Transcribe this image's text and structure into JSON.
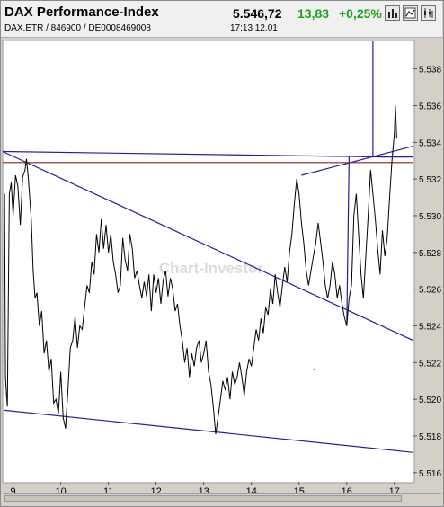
{
  "header": {
    "title": "DAX Performance-Index",
    "price": "5.546,72",
    "change": "13,83",
    "change_pct": "+0,25%",
    "subtitle": "DAX.ETR   /   846900   /   DE0008469008",
    "time": "17:13    12.01",
    "change_color": "#22a022",
    "toolbar_icons": [
      "bar-chart-icon",
      "line-chart-icon",
      "candle-chart-icon",
      "print-icon"
    ]
  },
  "watermark": "Chart-Investor",
  "chart_data": {
    "type": "line",
    "title": "",
    "xlabel": "",
    "ylabel": "",
    "xlim": [
      8.8,
      17.4
    ],
    "ylim": [
      5.5155,
      5.5395
    ],
    "x_ticks": [
      9,
      10,
      11,
      12,
      13,
      14,
      15,
      16,
      17
    ],
    "y_ticks": [
      5.516,
      5.518,
      5.52,
      5.522,
      5.524,
      5.526,
      5.528,
      5.53,
      5.532,
      5.534,
      5.536,
      5.538
    ],
    "grid": false,
    "legend": "none",
    "series": [
      {
        "color": "#000000",
        "points": [
          [
            8.82,
            5.5312
          ],
          [
            8.84,
            5.5212
          ],
          [
            8.86,
            5.5203
          ],
          [
            8.88,
            5.5196
          ],
          [
            8.92,
            5.5312
          ],
          [
            8.96,
            5.5318
          ],
          [
            9.0,
            5.53
          ],
          [
            9.05,
            5.5322
          ],
          [
            9.1,
            5.5316
          ],
          [
            9.15,
            5.5295
          ],
          [
            9.2,
            5.5321
          ],
          [
            9.25,
            5.5325
          ],
          [
            9.28,
            5.5331
          ],
          [
            9.32,
            5.532
          ],
          [
            9.38,
            5.5298
          ],
          [
            9.42,
            5.527
          ],
          [
            9.46,
            5.5255
          ],
          [
            9.5,
            5.5258
          ],
          [
            9.55,
            5.524
          ],
          [
            9.6,
            5.5248
          ],
          [
            9.65,
            5.5225
          ],
          [
            9.7,
            5.5232
          ],
          [
            9.75,
            5.5215
          ],
          [
            9.8,
            5.5222
          ],
          [
            9.85,
            5.5198
          ],
          [
            9.9,
            5.52
          ],
          [
            9.95,
            5.5192
          ],
          [
            10.0,
            5.5215
          ],
          [
            10.05,
            5.519
          ],
          [
            10.1,
            5.5184
          ],
          [
            10.15,
            5.5205
          ],
          [
            10.2,
            5.5228
          ],
          [
            10.25,
            5.5232
          ],
          [
            10.3,
            5.5245
          ],
          [
            10.35,
            5.5228
          ],
          [
            10.4,
            5.524
          ],
          [
            10.45,
            5.5238
          ],
          [
            10.5,
            5.525
          ],
          [
            10.55,
            5.5262
          ],
          [
            10.6,
            5.5258
          ],
          [
            10.65,
            5.5275
          ],
          [
            10.7,
            5.5268
          ],
          [
            10.75,
            5.529
          ],
          [
            10.8,
            5.528
          ],
          [
            10.85,
            5.5298
          ],
          [
            10.9,
            5.5282
          ],
          [
            10.95,
            5.5295
          ],
          [
            11.0,
            5.528
          ],
          [
            11.05,
            5.529
          ],
          [
            11.1,
            5.5275
          ],
          [
            11.15,
            5.5268
          ],
          [
            11.2,
            5.5258
          ],
          [
            11.25,
            5.5262
          ],
          [
            11.3,
            5.5288
          ],
          [
            11.35,
            5.5276
          ],
          [
            11.4,
            5.527
          ],
          [
            11.45,
            5.529
          ],
          [
            11.5,
            5.5282
          ],
          [
            11.55,
            5.5266
          ],
          [
            11.6,
            5.527
          ],
          [
            11.65,
            5.5262
          ],
          [
            11.7,
            5.5255
          ],
          [
            11.75,
            5.5264
          ],
          [
            11.8,
            5.5256
          ],
          [
            11.85,
            5.5268
          ],
          [
            11.9,
            5.5248
          ],
          [
            11.95,
            5.5268
          ],
          [
            12.0,
            5.5258
          ],
          [
            12.05,
            5.5266
          ],
          [
            12.1,
            5.5252
          ],
          [
            12.15,
            5.5265
          ],
          [
            12.2,
            5.527
          ],
          [
            12.25,
            5.5256
          ],
          [
            12.3,
            5.5266
          ],
          [
            12.35,
            5.526
          ],
          [
            12.4,
            5.5248
          ],
          [
            12.45,
            5.5252
          ],
          [
            12.5,
            5.524
          ],
          [
            12.55,
            5.5232
          ],
          [
            12.6,
            5.522
          ],
          [
            12.65,
            5.5228
          ],
          [
            12.7,
            5.5212
          ],
          [
            12.75,
            5.5225
          ],
          [
            12.8,
            5.5218
          ],
          [
            12.85,
            5.5228
          ],
          [
            12.9,
            5.5232
          ],
          [
            12.95,
            5.522
          ],
          [
            13.0,
            5.5225
          ],
          [
            13.05,
            5.5232
          ],
          [
            13.1,
            5.5215
          ],
          [
            13.15,
            5.5208
          ],
          [
            13.2,
            5.5196
          ],
          [
            13.25,
            5.5181
          ],
          [
            13.3,
            5.519
          ],
          [
            13.35,
            5.52
          ],
          [
            13.4,
            5.521
          ],
          [
            13.45,
            5.5205
          ],
          [
            13.5,
            5.5212
          ],
          [
            13.55,
            5.52
          ],
          [
            13.6,
            5.5215
          ],
          [
            13.65,
            5.5208
          ],
          [
            13.7,
            5.5212
          ],
          [
            13.75,
            5.522
          ],
          [
            13.8,
            5.5212
          ],
          [
            13.85,
            5.5202
          ],
          [
            13.9,
            5.5215
          ],
          [
            13.95,
            5.5222
          ],
          [
            14.0,
            5.5218
          ],
          [
            14.05,
            5.5228
          ],
          [
            14.1,
            5.5238
          ],
          [
            14.15,
            5.5232
          ],
          [
            14.2,
            5.5244
          ],
          [
            14.25,
            5.5236
          ],
          [
            14.3,
            5.525
          ],
          [
            14.35,
            5.5246
          ],
          [
            14.4,
            5.526
          ],
          [
            14.45,
            5.5252
          ],
          [
            14.5,
            5.5268
          ],
          [
            14.55,
            5.5258
          ],
          [
            14.6,
            5.525
          ],
          [
            14.65,
            5.5262
          ],
          [
            14.7,
            5.5272
          ],
          [
            14.75,
            5.5264
          ],
          [
            14.8,
            5.528
          ],
          [
            14.85,
            5.529
          ],
          [
            14.9,
            5.5306
          ],
          [
            14.95,
            5.532
          ],
          [
            15.0,
            5.5312
          ],
          [
            15.05,
            5.5296
          ],
          [
            15.1,
            5.5285
          ],
          [
            15.15,
            5.527
          ],
          [
            15.2,
            5.5262
          ],
          [
            15.25,
            5.527
          ],
          [
            15.3,
            5.5278
          ],
          [
            15.35,
            5.5285
          ],
          [
            15.4,
            5.5296
          ],
          [
            15.45,
            5.5286
          ],
          [
            15.5,
            5.5275
          ],
          [
            15.55,
            5.5262
          ],
          [
            15.6,
            5.5255
          ],
          [
            15.65,
            5.5262
          ],
          [
            15.7,
            5.5275
          ],
          [
            15.75,
            5.5268
          ],
          [
            15.8,
            5.5255
          ],
          [
            15.85,
            5.5262
          ],
          [
            15.9,
            5.5252
          ],
          [
            15.95,
            5.5245
          ],
          [
            16.0,
            5.524
          ],
          [
            16.05,
            5.5255
          ],
          [
            16.1,
            5.5262
          ],
          [
            16.15,
            5.53
          ],
          [
            16.2,
            5.5312
          ],
          [
            16.25,
            5.529
          ],
          [
            16.3,
            5.5268
          ],
          [
            16.35,
            5.5255
          ],
          [
            16.4,
            5.5278
          ],
          [
            16.45,
            5.53
          ],
          [
            16.5,
            5.5325
          ],
          [
            16.55,
            5.5312
          ],
          [
            16.6,
            5.5298
          ],
          [
            16.65,
            5.5282
          ],
          [
            16.7,
            5.5268
          ],
          [
            16.75,
            5.5292
          ],
          [
            16.8,
            5.5278
          ],
          [
            16.85,
            5.5288
          ],
          [
            16.9,
            5.531
          ],
          [
            16.95,
            5.533
          ],
          [
            17.0,
            5.5345
          ],
          [
            17.02,
            5.536
          ],
          [
            17.05,
            5.5342
          ]
        ]
      }
    ],
    "trendlines": [
      {
        "color": "#2020a0",
        "points": [
          [
            8.78,
            5.5335
          ],
          [
            17.4,
            5.5232
          ]
        ]
      },
      {
        "color": "#2020a0",
        "points": [
          [
            8.78,
            5.5335
          ],
          [
            16.75,
            5.5332
          ],
          [
            17.4,
            5.5332
          ]
        ]
      },
      {
        "color": "#2020a0",
        "points": [
          [
            8.82,
            5.5194
          ],
          [
            17.4,
            5.5171
          ]
        ]
      },
      {
        "color": "#2020a0",
        "points": [
          [
            15.05,
            5.5322
          ],
          [
            17.4,
            5.5338
          ]
        ]
      },
      {
        "color": "#2020a0",
        "points": [
          [
            16.55,
            5.5332
          ],
          [
            16.55,
            5.5395
          ]
        ]
      },
      {
        "color": "#2020a0",
        "points": [
          [
            16.0,
            5.524
          ],
          [
            16.05,
            5.5332
          ]
        ]
      },
      {
        "color": "#8b2020",
        "points": [
          [
            8.78,
            5.5329
          ],
          [
            17.4,
            5.5329
          ]
        ]
      }
    ]
  }
}
